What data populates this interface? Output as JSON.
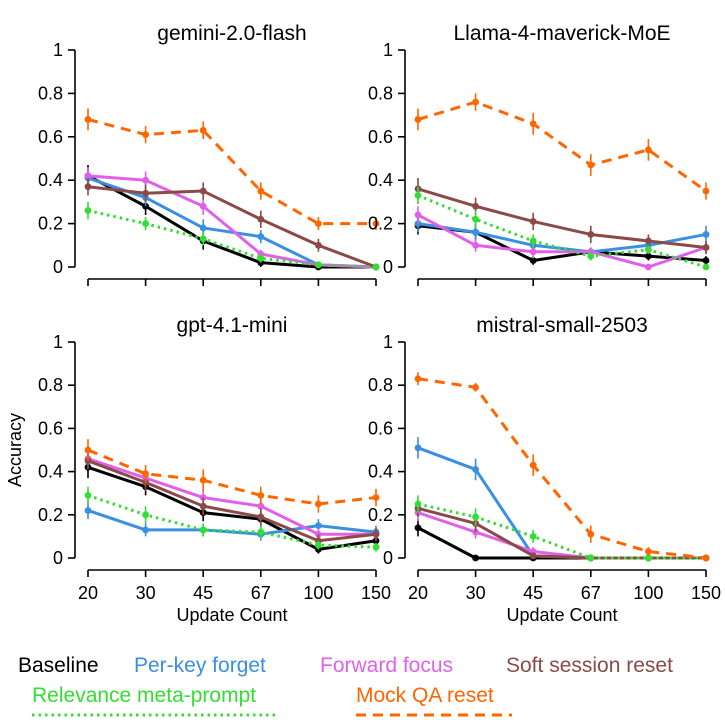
{
  "chart_data": {
    "type": "line",
    "layout": "2x2 small multiples",
    "x_categories": [
      "20",
      "30",
      "45",
      "67",
      "100",
      "150"
    ],
    "xlabel": "Update Count",
    "ylabel": "Accuracy",
    "ylim": [
      0,
      1
    ],
    "yticks": [
      "0",
      "0.2",
      "0.4",
      "0.6",
      "0.8",
      "1"
    ],
    "series_styles": [
      {
        "name": "Baseline",
        "color": "#000000",
        "dash": "solid"
      },
      {
        "name": "Per-key forget",
        "color": "#3a8fe0",
        "dash": "solid"
      },
      {
        "name": "Forward focus",
        "color": "#e061e8",
        "dash": "solid"
      },
      {
        "name": "Soft session reset",
        "color": "#8b4a48",
        "dash": "solid"
      },
      {
        "name": "Relevance meta-prompt",
        "color": "#33dd33",
        "dash": "dotted"
      },
      {
        "name": "Mock QA reset",
        "color": "#ff6600",
        "dash": "dashed"
      }
    ],
    "panels": [
      {
        "title": "gemini-2.0-flash",
        "series": [
          {
            "name": "Baseline",
            "values": [
              0.42,
              0.28,
              0.12,
              0.02,
              0.0,
              0.0
            ],
            "err": [
              0.05,
              0.04,
              0.04,
              0.02,
              0.01,
              0.0
            ]
          },
          {
            "name": "Per-key forget",
            "values": [
              0.41,
              0.32,
              0.18,
              0.14,
              0.01,
              0.0
            ],
            "err": [
              0.04,
              0.04,
              0.04,
              0.03,
              0.01,
              0.0
            ]
          },
          {
            "name": "Forward focus",
            "values": [
              0.42,
              0.4,
              0.28,
              0.06,
              0.01,
              0.0
            ],
            "err": [
              0.04,
              0.04,
              0.04,
              0.02,
              0.01,
              0.0
            ]
          },
          {
            "name": "Soft session reset",
            "values": [
              0.37,
              0.34,
              0.35,
              0.22,
              0.1,
              0.0
            ],
            "err": [
              0.04,
              0.04,
              0.04,
              0.04,
              0.03,
              0.0
            ]
          },
          {
            "name": "Relevance meta-prompt",
            "values": [
              0.26,
              0.2,
              0.13,
              0.04,
              0.01,
              0.0
            ],
            "err": [
              0.04,
              0.03,
              0.03,
              0.02,
              0.01,
              0.0
            ]
          },
          {
            "name": "Mock QA reset",
            "values": [
              0.68,
              0.61,
              0.63,
              0.35,
              0.2,
              0.2
            ],
            "err": [
              0.05,
              0.04,
              0.04,
              0.04,
              0.03,
              0.03
            ]
          }
        ]
      },
      {
        "title": "Llama-4-maverick-MoE",
        "series": [
          {
            "name": "Baseline",
            "values": [
              0.19,
              0.16,
              0.03,
              0.07,
              0.05,
              0.03
            ],
            "err": [
              0.04,
              0.04,
              0.02,
              0.02,
              0.02,
              0.02
            ]
          },
          {
            "name": "Per-key forget",
            "values": [
              0.2,
              0.16,
              0.1,
              0.07,
              0.1,
              0.15
            ],
            "err": [
              0.04,
              0.04,
              0.03,
              0.02,
              0.03,
              0.04
            ]
          },
          {
            "name": "Forward focus",
            "values": [
              0.24,
              0.1,
              0.07,
              0.07,
              0.0,
              0.09
            ],
            "err": [
              0.04,
              0.03,
              0.03,
              0.02,
              0.01,
              0.03
            ]
          },
          {
            "name": "Soft session reset",
            "values": [
              0.36,
              0.28,
              0.21,
              0.15,
              0.12,
              0.09
            ],
            "err": [
              0.05,
              0.04,
              0.04,
              0.04,
              0.03,
              0.03
            ]
          },
          {
            "name": "Relevance meta-prompt",
            "values": [
              0.33,
              0.22,
              0.12,
              0.05,
              0.08,
              0.0
            ],
            "err": [
              0.04,
              0.04,
              0.03,
              0.02,
              0.02,
              0.01
            ]
          },
          {
            "name": "Mock QA reset",
            "values": [
              0.68,
              0.76,
              0.66,
              0.47,
              0.54,
              0.35
            ],
            "err": [
              0.05,
              0.04,
              0.05,
              0.05,
              0.05,
              0.04
            ]
          }
        ]
      },
      {
        "title": "gpt-4.1-mini",
        "series": [
          {
            "name": "Baseline",
            "values": [
              0.42,
              0.33,
              0.21,
              0.18,
              0.04,
              0.08
            ],
            "err": [
              0.05,
              0.04,
              0.04,
              0.04,
              0.02,
              0.02
            ]
          },
          {
            "name": "Per-key forget",
            "values": [
              0.22,
              0.13,
              0.13,
              0.11,
              0.15,
              0.12
            ],
            "err": [
              0.04,
              0.03,
              0.03,
              0.03,
              0.03,
              0.03
            ]
          },
          {
            "name": "Forward focus",
            "values": [
              0.46,
              0.37,
              0.28,
              0.24,
              0.11,
              0.11
            ],
            "err": [
              0.04,
              0.04,
              0.04,
              0.04,
              0.03,
              0.03
            ]
          },
          {
            "name": "Soft session reset",
            "values": [
              0.45,
              0.35,
              0.24,
              0.19,
              0.08,
              0.11
            ],
            "err": [
              0.04,
              0.04,
              0.04,
              0.04,
              0.03,
              0.03
            ]
          },
          {
            "name": "Relevance meta-prompt",
            "values": [
              0.29,
              0.2,
              0.13,
              0.12,
              0.06,
              0.05
            ],
            "err": [
              0.04,
              0.04,
              0.03,
              0.03,
              0.02,
              0.02
            ]
          },
          {
            "name": "Mock QA reset",
            "values": [
              0.5,
              0.39,
              0.36,
              0.29,
              0.25,
              0.28
            ],
            "err": [
              0.05,
              0.04,
              0.05,
              0.04,
              0.04,
              0.04
            ]
          }
        ]
      },
      {
        "title": "mistral-small-2503",
        "series": [
          {
            "name": "Baseline",
            "values": [
              0.14,
              0.0,
              0.0,
              0.0,
              0.0,
              0.0
            ],
            "err": [
              0.04,
              0.01,
              0.0,
              0.0,
              0.0,
              0.0
            ]
          },
          {
            "name": "Per-key forget",
            "values": [
              0.51,
              0.41,
              0.01,
              0.0,
              0.0,
              0.0
            ],
            "err": [
              0.05,
              0.05,
              0.01,
              0.0,
              0.0,
              0.0
            ]
          },
          {
            "name": "Forward focus",
            "values": [
              0.21,
              0.12,
              0.03,
              0.0,
              0.0,
              0.0
            ],
            "err": [
              0.04,
              0.03,
              0.02,
              0.0,
              0.0,
              0.0
            ]
          },
          {
            "name": "Soft session reset",
            "values": [
              0.23,
              0.16,
              0.01,
              0.0,
              0.0,
              0.0
            ],
            "err": [
              0.04,
              0.04,
              0.01,
              0.0,
              0.0,
              0.0
            ]
          },
          {
            "name": "Relevance meta-prompt",
            "values": [
              0.25,
              0.19,
              0.1,
              0.0,
              0.0,
              0.0
            ],
            "err": [
              0.04,
              0.04,
              0.03,
              0.0,
              0.0,
              0.0
            ]
          },
          {
            "name": "Mock QA reset",
            "values": [
              0.83,
              0.79,
              0.43,
              0.11,
              0.03,
              0.0
            ],
            "err": [
              0.03,
              0.02,
              0.05,
              0.04,
              0.02,
              0.0
            ]
          }
        ]
      }
    ],
    "legend": {
      "placement": "bottom",
      "rows": [
        [
          "Baseline",
          "Per-key forget",
          "Forward focus",
          "Soft session reset"
        ],
        [
          "Relevance meta-prompt",
          "Mock QA reset"
        ]
      ]
    }
  }
}
